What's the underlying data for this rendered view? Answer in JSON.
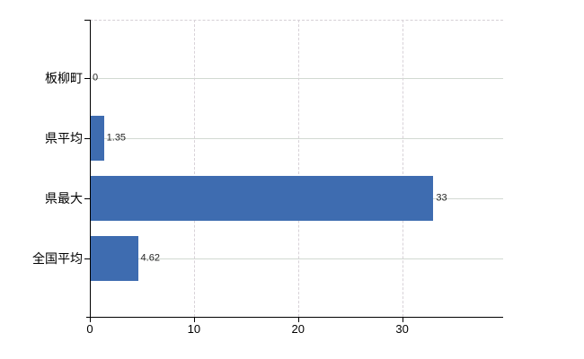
{
  "chart_data": {
    "type": "bar",
    "orientation": "horizontal",
    "title": "",
    "xlabel": "",
    "ylabel": "",
    "categories": [
      "板柳町",
      "県平均",
      "県最大",
      "全国平均"
    ],
    "values": [
      0,
      1.35,
      33,
      4.62
    ],
    "value_labels": [
      "0",
      "1.35",
      "33",
      "4.62"
    ],
    "x_ticks": [
      0,
      10,
      20,
      30
    ],
    "x_tick_labels": [
      "0",
      "10",
      "20",
      "30"
    ],
    "xlim": [
      0,
      39.7
    ],
    "grid": true,
    "legend": false,
    "colors": {
      "bar": "#3e6cb0",
      "axis": "#000000",
      "grid_horizontal": "#d2d9d2",
      "grid_vertical": "#d8d2d8",
      "category_text": "#000000",
      "value_text": "#262626",
      "tick_text": "#000000",
      "background": "#ffffff"
    }
  }
}
